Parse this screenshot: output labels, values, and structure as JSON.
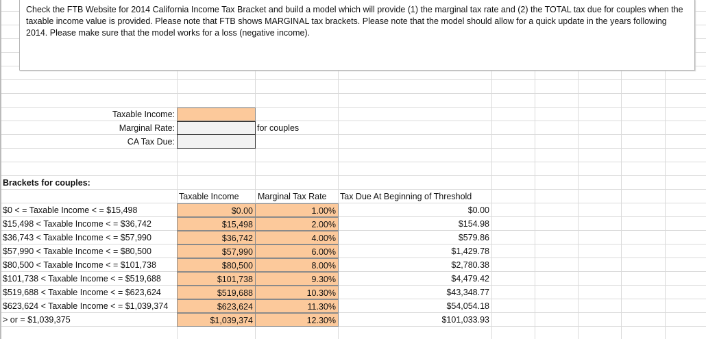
{
  "instructions": "Check the FTB Website for 2014  California Income Tax Bracket and build a model which will provide (1) the marginal tax rate and (2) the TOTAL tax due for couples when the taxable income value is provided. Please note that FTB shows MARGINAL tax brackets. Please note that the model should allow for a quick update in the years following 2014. Please make sure that the model works for a loss (negative income).",
  "inputs": {
    "taxable_income_label": "Taxable Income:",
    "taxable_income_value": "",
    "marginal_rate_label": "Marginal Rate:",
    "marginal_rate_value": "",
    "ca_tax_due_label": "CA Tax Due:",
    "ca_tax_due_value": "",
    "note": "for couples"
  },
  "brackets": {
    "title": "Brackets for couples:",
    "headers": [
      "Taxable Income",
      "Marginal Tax Rate",
      "Tax Due At Beginning of Threshold"
    ],
    "rows": [
      {
        "label": "$0 < = Taxable Income < = $15,498",
        "income": "$0.00",
        "rate": "1.00%",
        "tax": "$0.00"
      },
      {
        "label": "$15,498 < Taxable Income < = $36,742",
        "income": "$15,498",
        "rate": "2.00%",
        "tax": "$154.98"
      },
      {
        "label": "$36,743 < Taxable Income < = $57,990",
        "income": "$36,742",
        "rate": "4.00%",
        "tax": "$579.86"
      },
      {
        "label": "$57,990 < Taxable Income < = $80,500",
        "income": "$57,990",
        "rate": "6.00%",
        "tax": "$1,429.78"
      },
      {
        "label": "$80,500 < Taxable Income < = $101,738",
        "income": "$80,500",
        "rate": "8.00%",
        "tax": "$2,780.38"
      },
      {
        "label": "$101,738 < Taxable Income < = $519,688",
        "income": "$101,738",
        "rate": "9.30%",
        "tax": "$4,479.42"
      },
      {
        "label": "$519,688 < Taxable Income < = $623,624",
        "income": "$519,688",
        "rate": "10.30%",
        "tax": "$43,348.77"
      },
      {
        "label": "$623,624 < Taxable Income < = $1,039,374",
        "income": "$623,624",
        "rate": "11.30%",
        "tax": "$54,054.18"
      },
      {
        "label": "> or = $1,039,375",
        "income": "$1,039,374",
        "rate": "12.30%",
        "tax": "$101,033.93"
      }
    ]
  },
  "colors": {
    "input_fill": "#fcc99b",
    "output_fill": "#f2f2f2",
    "grid": "#dadada"
  }
}
